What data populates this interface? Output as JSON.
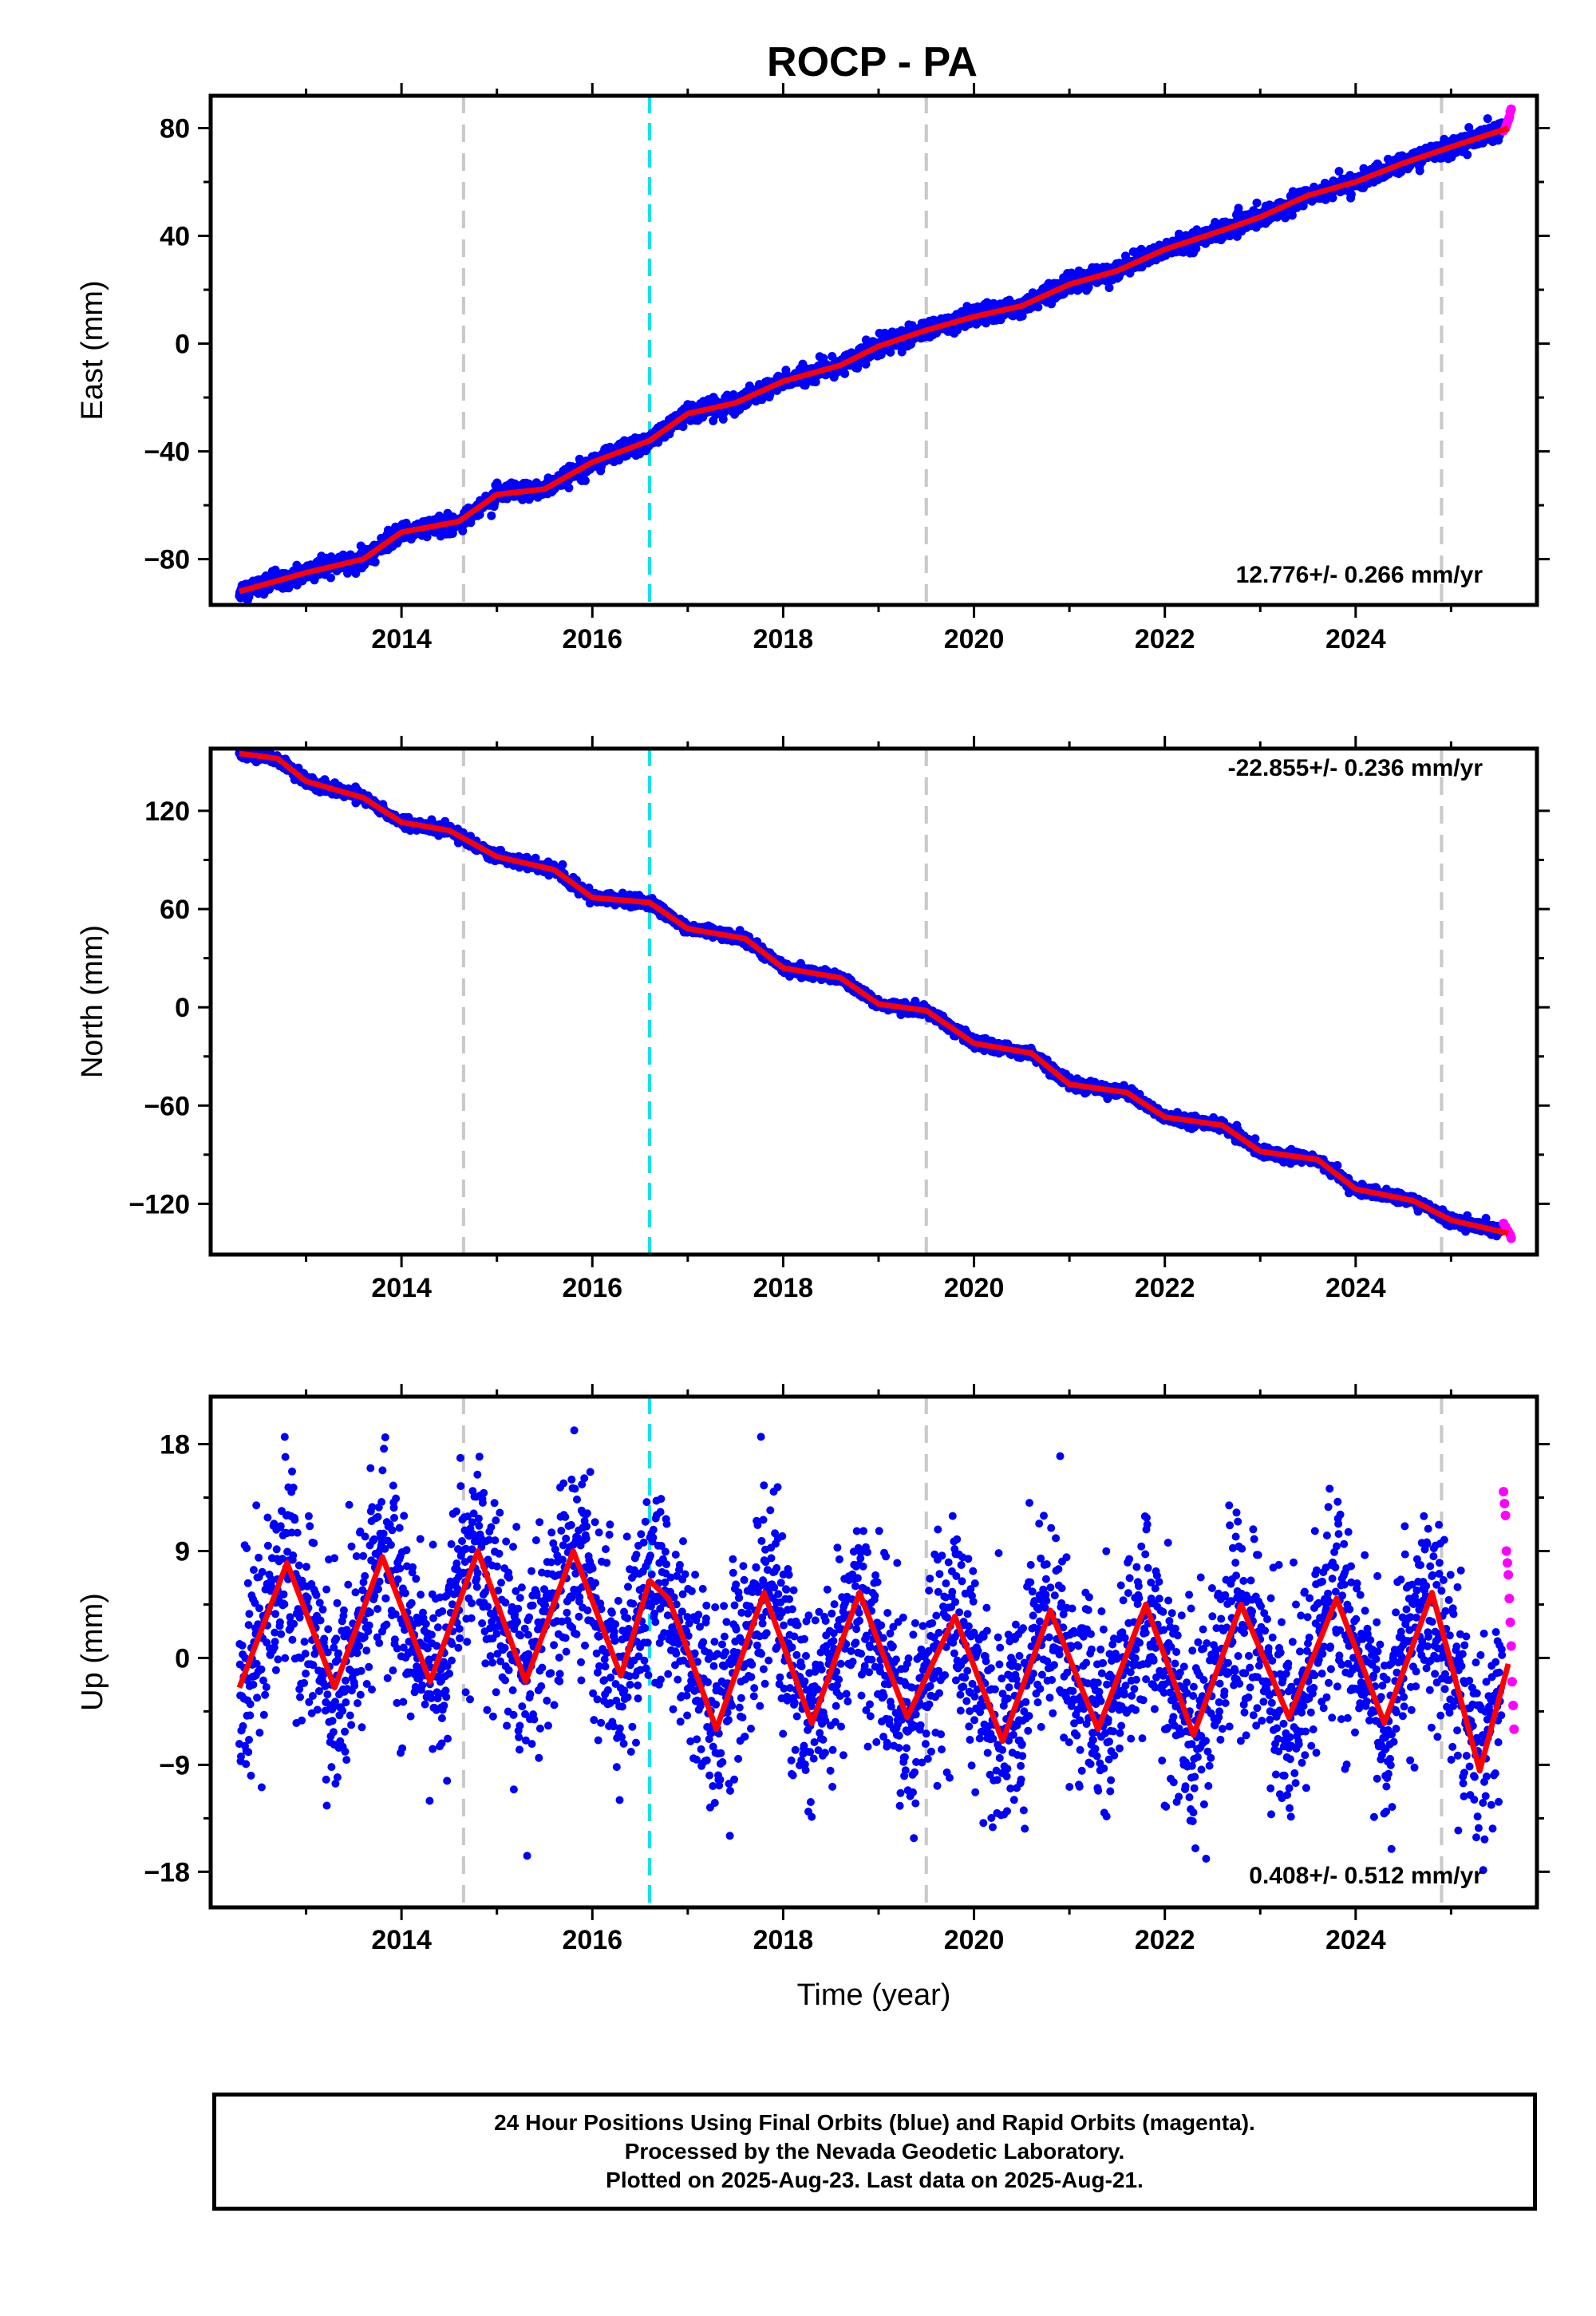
{
  "chart_data": {
    "title": "ROCP - PA",
    "type": "scatter",
    "x_range": [
      2012.0,
      2025.9
    ],
    "x_ticks": [
      2014,
      2016,
      2018,
      2020,
      2022,
      2024
    ],
    "xlabel": "Time (year)",
    "equipment_change_years": [
      2014.65,
      2019.5,
      2024.9
    ],
    "earthquake_years": [
      2016.6
    ],
    "panels": [
      {
        "key": "east",
        "ylabel": "East (mm)",
        "ylim": [
          -97,
          92
        ],
        "y_ticks": [
          -80,
          -40,
          0,
          40,
          80
        ],
        "rate_text": "12.776+/- 0.266 mm/yr",
        "model_points": [
          [
            2012.3,
            -92
          ],
          [
            2013,
            -85
          ],
          [
            2013.6,
            -80
          ],
          [
            2014.0,
            -70
          ],
          [
            2014.6,
            -66
          ],
          [
            2015.0,
            -56
          ],
          [
            2015.5,
            -54
          ],
          [
            2016.0,
            -44
          ],
          [
            2016.6,
            -36
          ],
          [
            2017.0,
            -26
          ],
          [
            2017.5,
            -22
          ],
          [
            2018.0,
            -14
          ],
          [
            2018.6,
            -8
          ],
          [
            2019.0,
            -1
          ],
          [
            2019.5,
            5
          ],
          [
            2020.0,
            10
          ],
          [
            2020.5,
            14
          ],
          [
            2021.0,
            22
          ],
          [
            2021.5,
            27
          ],
          [
            2022.0,
            35
          ],
          [
            2022.6,
            42
          ],
          [
            2023.0,
            47
          ],
          [
            2023.5,
            55
          ],
          [
            2024.0,
            60
          ],
          [
            2024.5,
            67
          ],
          [
            2025.0,
            73
          ],
          [
            2025.6,
            80
          ]
        ],
        "rapid_points": [
          [
            2025.55,
            79
          ],
          [
            2025.57,
            80
          ],
          [
            2025.58,
            81
          ],
          [
            2025.59,
            82
          ],
          [
            2025.6,
            83
          ],
          [
            2025.61,
            84
          ],
          [
            2025.62,
            86
          ],
          [
            2025.63,
            87
          ]
        ]
      },
      {
        "key": "north",
        "ylabel": "North (mm)",
        "ylim": [
          -151,
          158
        ],
        "y_ticks": [
          -120,
          -60,
          0,
          60,
          120
        ],
        "rate_text": "-22.855+/- 0.236 mm/yr",
        "model_points": [
          [
            2012.3,
            155
          ],
          [
            2012.7,
            152
          ],
          [
            2013.0,
            138
          ],
          [
            2013.6,
            128
          ],
          [
            2014.0,
            113
          ],
          [
            2014.5,
            108
          ],
          [
            2015.0,
            92
          ],
          [
            2015.6,
            84
          ],
          [
            2016.0,
            67
          ],
          [
            2016.6,
            64
          ],
          [
            2017.0,
            48
          ],
          [
            2017.6,
            42
          ],
          [
            2018.0,
            24
          ],
          [
            2018.6,
            18
          ],
          [
            2019.0,
            2
          ],
          [
            2019.5,
            -2
          ],
          [
            2020.0,
            -22
          ],
          [
            2020.6,
            -28
          ],
          [
            2021.0,
            -47
          ],
          [
            2021.6,
            -52
          ],
          [
            2022.0,
            -67
          ],
          [
            2022.6,
            -72
          ],
          [
            2023.0,
            -88
          ],
          [
            2023.6,
            -93
          ],
          [
            2024.0,
            -111
          ],
          [
            2024.6,
            -118
          ],
          [
            2025.0,
            -130
          ],
          [
            2025.6,
            -138
          ]
        ],
        "rapid_points": [
          [
            2025.55,
            -132
          ],
          [
            2025.57,
            -134
          ],
          [
            2025.59,
            -136
          ],
          [
            2025.6,
            -137
          ],
          [
            2025.62,
            -139
          ],
          [
            2025.63,
            -141
          ]
        ]
      },
      {
        "key": "up",
        "ylabel": "Up (mm)",
        "ylim": [
          -21,
          22
        ],
        "y_ticks": [
          -18,
          -9,
          0,
          9,
          18
        ],
        "rate_text": "0.408+/- 0.512 mm/yr",
        "model_points": [
          [
            2012.3,
            -2.5
          ],
          [
            2012.8,
            8
          ],
          [
            2013.3,
            -2.5
          ],
          [
            2013.8,
            8.5
          ],
          [
            2014.3,
            -2
          ],
          [
            2014.8,
            9
          ],
          [
            2015.3,
            -2
          ],
          [
            2015.8,
            9
          ],
          [
            2016.3,
            -1.5
          ],
          [
            2016.6,
            6.5
          ],
          [
            2016.8,
            5
          ],
          [
            2017.3,
            -6
          ],
          [
            2017.8,
            5.5
          ],
          [
            2018.3,
            -5.5
          ],
          [
            2018.8,
            5.5
          ],
          [
            2019.3,
            -5
          ],
          [
            2019.8,
            3.5
          ],
          [
            2020.3,
            -7
          ],
          [
            2020.8,
            4
          ],
          [
            2021.3,
            -6
          ],
          [
            2021.8,
            4.5
          ],
          [
            2022.3,
            -6.5
          ],
          [
            2022.8,
            4.5
          ],
          [
            2023.3,
            -5
          ],
          [
            2023.8,
            5
          ],
          [
            2024.3,
            -5.5
          ],
          [
            2024.8,
            5.5
          ],
          [
            2025.3,
            -9.5
          ],
          [
            2025.6,
            -0.5
          ]
        ],
        "rapid_points": [
          [
            2025.55,
            14
          ],
          [
            2025.56,
            13
          ],
          [
            2025.57,
            12
          ],
          [
            2025.58,
            9
          ],
          [
            2025.59,
            8
          ],
          [
            2025.6,
            7
          ],
          [
            2025.61,
            5
          ],
          [
            2025.62,
            3
          ],
          [
            2025.63,
            1
          ],
          [
            2025.64,
            -2
          ],
          [
            2025.65,
            -4
          ],
          [
            2025.66,
            -6
          ]
        ]
      }
    ]
  },
  "footer": {
    "line1": "24 Hour Positions Using Final Orbits (blue) and Rapid Orbits (magenta).",
    "line2": "Processed by the Nevada Geodetic Laboratory.",
    "line3": "Plotted on 2025-Aug-23. Last data on 2025-Aug-21."
  }
}
